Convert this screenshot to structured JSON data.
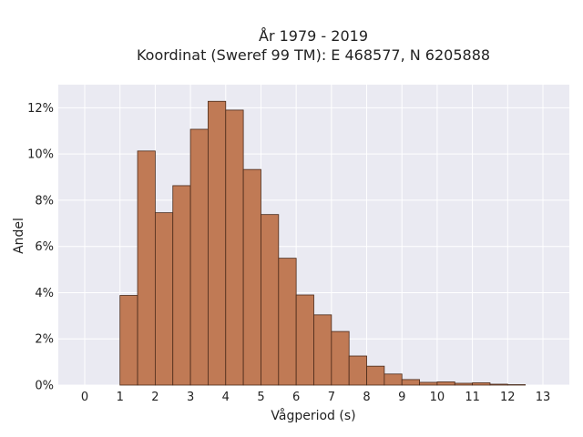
{
  "chart_data": {
    "type": "bar",
    "title_lines": [
      "År 1979 - 2019",
      "Koordinat (Sweref 99 TM): E 468577, N 6205888"
    ],
    "xlabel": "Vågperiod (s)",
    "ylabel": "Andel",
    "xlim": [
      -0.75,
      13.75
    ],
    "ylim": [
      0,
      0.13
    ],
    "xticks": [
      0,
      1,
      2,
      3,
      4,
      5,
      6,
      7,
      8,
      9,
      10,
      11,
      12,
      13
    ],
    "yticks": [
      0,
      0.02,
      0.04,
      0.06,
      0.08,
      0.1,
      0.12
    ],
    "ytick_labels": [
      "0%",
      "2%",
      "4%",
      "6%",
      "8%",
      "10%",
      "12%"
    ],
    "bin_width": 0.5,
    "bins": [
      {
        "x0": 1.0,
        "value": 0.0388
      },
      {
        "x0": 1.5,
        "value": 0.1013
      },
      {
        "x0": 2.0,
        "value": 0.0746
      },
      {
        "x0": 2.5,
        "value": 0.0863
      },
      {
        "x0": 3.0,
        "value": 0.1107
      },
      {
        "x0": 3.5,
        "value": 0.1228
      },
      {
        "x0": 4.0,
        "value": 0.119
      },
      {
        "x0": 4.5,
        "value": 0.0933
      },
      {
        "x0": 5.0,
        "value": 0.0738
      },
      {
        "x0": 5.5,
        "value": 0.0549
      },
      {
        "x0": 6.0,
        "value": 0.039
      },
      {
        "x0": 6.5,
        "value": 0.0304
      },
      {
        "x0": 7.0,
        "value": 0.0232
      },
      {
        "x0": 7.5,
        "value": 0.0126
      },
      {
        "x0": 8.0,
        "value": 0.0082
      },
      {
        "x0": 8.5,
        "value": 0.0048
      },
      {
        "x0": 9.0,
        "value": 0.0024
      },
      {
        "x0": 9.5,
        "value": 0.0012
      },
      {
        "x0": 10.0,
        "value": 0.0014
      },
      {
        "x0": 10.5,
        "value": 0.0008
      },
      {
        "x0": 11.0,
        "value": 0.001
      },
      {
        "x0": 11.5,
        "value": 0.0004
      },
      {
        "x0": 12.0,
        "value": 0.0002
      }
    ],
    "grid": true,
    "legend": "none",
    "colors": {
      "bar_fill": "#c07a55",
      "bar_edge": "#4a2a1a",
      "plot_background": "#eaeaf2",
      "grid": "#ffffff"
    }
  }
}
